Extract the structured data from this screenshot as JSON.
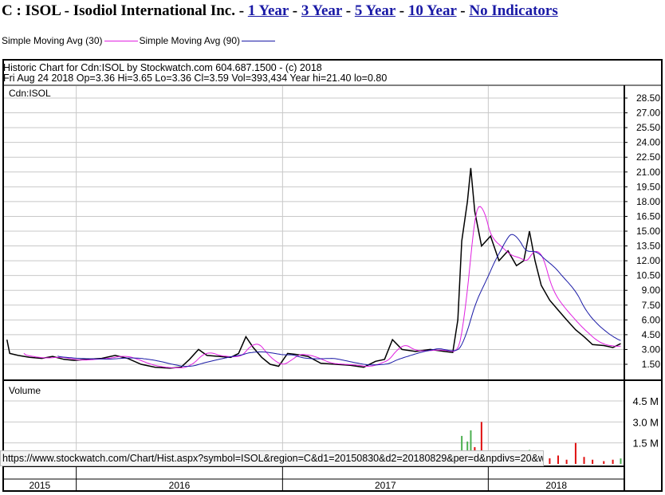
{
  "header": {
    "title": "C : ISOL - Isodiol International Inc.",
    "sep": " - ",
    "links": [
      "1 Year",
      "3 Year",
      "5 Year",
      "10 Year",
      "No Indicators"
    ]
  },
  "legend": [
    {
      "label": "Simple Moving Avg (30)",
      "color": "#e020e0"
    },
    {
      "label": "Simple Moving Avg (90)",
      "color": "#1a1aa6"
    }
  ],
  "chart_header": {
    "line1": "Historic Chart for Cdn:ISOL by Stockwatch.com 604.687.1500 - (c) 2018",
    "line2": "Fri Aug 24 2018  Op=3.36  Hi=3.65  Lo=3.36  Cl=3.59  Vol=393,434  Year hi=21.40  lo=0.80"
  },
  "status_url": "https://www.stockwatch.com/Chart/Hist.aspx?symbol=ISOL&region=C&d1=20150830&d2=20180829&per=d&npdivs=20&wid",
  "chart_data": {
    "type": "line",
    "symbol_label": "Cdn:ISOL",
    "volume_label": "Volume",
    "x_range": [
      "2015-08-30",
      "2018-08-29"
    ],
    "years": [
      "2015",
      "2016",
      "2017",
      "2018"
    ],
    "price_ticks": [
      "28.50",
      "27.00",
      "25.50",
      "24.00",
      "22.50",
      "21.00",
      "19.50",
      "18.00",
      "16.50",
      "15.00",
      "13.50",
      "12.00",
      "10.50",
      "9.00",
      "7.50",
      "6.00",
      "4.50",
      "3.00",
      "1.50"
    ],
    "volume_ticks": [
      "4.5 M",
      "3.0 M",
      "1.5 M"
    ],
    "ylim": [
      0.5,
      29
    ],
    "volume_ylim_millions": [
      0,
      6
    ],
    "colors": {
      "price": "#000000",
      "up": "#4caf50",
      "down": "#e01010",
      "sma30": "#e020e0",
      "sma90": "#1a1aa6",
      "grid": "#c8c8c8"
    },
    "series": [
      {
        "date": "2015-08-31",
        "close": 4.0,
        "vol": 0.3
      },
      {
        "date": "2015-09-05",
        "close": 2.6,
        "vol": 0.1
      },
      {
        "date": "2015-09-20",
        "close": 2.4,
        "vol": 0.08
      },
      {
        "date": "2015-10-10",
        "close": 2.2,
        "vol": 0.06
      },
      {
        "date": "2015-11-01",
        "close": 2.1,
        "vol": 0.05
      },
      {
        "date": "2015-11-20",
        "close": 2.3,
        "vol": 0.06
      },
      {
        "date": "2015-12-10",
        "close": 2.0,
        "vol": 0.05
      },
      {
        "date": "2015-12-28",
        "close": 1.9,
        "vol": 0.1
      },
      {
        "date": "2016-01-20",
        "close": 2.0,
        "vol": 0.05
      },
      {
        "date": "2016-02-15",
        "close": 2.1,
        "vol": 0.05
      },
      {
        "date": "2016-03-10",
        "close": 2.4,
        "vol": 0.06
      },
      {
        "date": "2016-04-01",
        "close": 2.1,
        "vol": 0.05
      },
      {
        "date": "2016-04-25",
        "close": 1.5,
        "vol": 0.04
      },
      {
        "date": "2016-05-20",
        "close": 1.2,
        "vol": 0.04
      },
      {
        "date": "2016-06-15",
        "close": 1.1,
        "vol": 0.03
      },
      {
        "date": "2016-07-05",
        "close": 1.2,
        "vol": 0.04
      },
      {
        "date": "2016-07-20",
        "close": 2.0,
        "vol": 0.08
      },
      {
        "date": "2016-08-05",
        "close": 3.0,
        "vol": 0.1
      },
      {
        "date": "2016-08-20",
        "close": 2.4,
        "vol": 0.06
      },
      {
        "date": "2016-09-10",
        "close": 2.3,
        "vol": 0.05
      },
      {
        "date": "2016-10-01",
        "close": 2.2,
        "vol": 0.05
      },
      {
        "date": "2016-10-15",
        "close": 2.6,
        "vol": 0.07
      },
      {
        "date": "2016-10-28",
        "close": 4.3,
        "vol": 0.12
      },
      {
        "date": "2016-11-10",
        "close": 3.2,
        "vol": 0.08
      },
      {
        "date": "2016-11-25",
        "close": 2.2,
        "vol": 0.06
      },
      {
        "date": "2016-12-10",
        "close": 1.5,
        "vol": 0.05
      },
      {
        "date": "2016-12-25",
        "close": 1.3,
        "vol": 0.04
      },
      {
        "date": "2017-01-10",
        "close": 2.6,
        "vol": 0.08
      },
      {
        "date": "2017-01-25",
        "close": 2.5,
        "vol": 0.05
      },
      {
        "date": "2017-02-15",
        "close": 2.3,
        "vol": 0.05
      },
      {
        "date": "2017-03-10",
        "close": 1.6,
        "vol": 0.04
      },
      {
        "date": "2017-04-05",
        "close": 1.5,
        "vol": 0.04
      },
      {
        "date": "2017-05-01",
        "close": 1.4,
        "vol": 0.03
      },
      {
        "date": "2017-05-25",
        "close": 1.2,
        "vol": 0.03
      },
      {
        "date": "2017-06-15",
        "close": 1.8,
        "vol": 0.05
      },
      {
        "date": "2017-07-01",
        "close": 2.0,
        "vol": 0.06
      },
      {
        "date": "2017-07-15",
        "close": 4.0,
        "vol": 0.12
      },
      {
        "date": "2017-08-01",
        "close": 3.0,
        "vol": 0.08
      },
      {
        "date": "2017-08-25",
        "close": 2.8,
        "vol": 0.06
      },
      {
        "date": "2017-09-20",
        "close": 3.0,
        "vol": 0.06
      },
      {
        "date": "2017-10-15",
        "close": 2.8,
        "vol": 0.06
      },
      {
        "date": "2017-10-30",
        "close": 2.7,
        "vol": 0.08
      },
      {
        "date": "2017-11-08",
        "close": 6.0,
        "vol": 0.6
      },
      {
        "date": "2017-11-15",
        "close": 14.0,
        "vol": 2.0
      },
      {
        "date": "2017-11-25",
        "close": 18.0,
        "vol": 1.6
      },
      {
        "date": "2017-12-01",
        "close": 21.4,
        "vol": 2.4
      },
      {
        "date": "2017-12-08",
        "close": 17.0,
        "vol": 1.2
      },
      {
        "date": "2017-12-20",
        "close": 13.5,
        "vol": 3.0
      },
      {
        "date": "2018-01-05",
        "close": 14.5,
        "vol": 0.6
      },
      {
        "date": "2018-01-20",
        "close": 12.0,
        "vol": 0.8
      },
      {
        "date": "2018-02-05",
        "close": 13.0,
        "vol": 0.4
      },
      {
        "date": "2018-02-20",
        "close": 11.5,
        "vol": 0.3
      },
      {
        "date": "2018-03-05",
        "close": 12.0,
        "vol": 0.3
      },
      {
        "date": "2018-03-15",
        "close": 15.0,
        "vol": 1.0
      },
      {
        "date": "2018-03-25",
        "close": 12.0,
        "vol": 0.9
      },
      {
        "date": "2018-04-05",
        "close": 9.5,
        "vol": 0.5
      },
      {
        "date": "2018-04-20",
        "close": 8.0,
        "vol": 0.4
      },
      {
        "date": "2018-05-05",
        "close": 7.0,
        "vol": 0.6
      },
      {
        "date": "2018-05-20",
        "close": 6.0,
        "vol": 0.3
      },
      {
        "date": "2018-06-05",
        "close": 5.0,
        "vol": 1.5
      },
      {
        "date": "2018-06-20",
        "close": 4.3,
        "vol": 0.5
      },
      {
        "date": "2018-07-05",
        "close": 3.5,
        "vol": 0.3
      },
      {
        "date": "2018-07-25",
        "close": 3.4,
        "vol": 0.2
      },
      {
        "date": "2018-08-10",
        "close": 3.2,
        "vol": 0.3
      },
      {
        "date": "2018-08-24",
        "close": 3.59,
        "vol": 0.39
      }
    ]
  }
}
